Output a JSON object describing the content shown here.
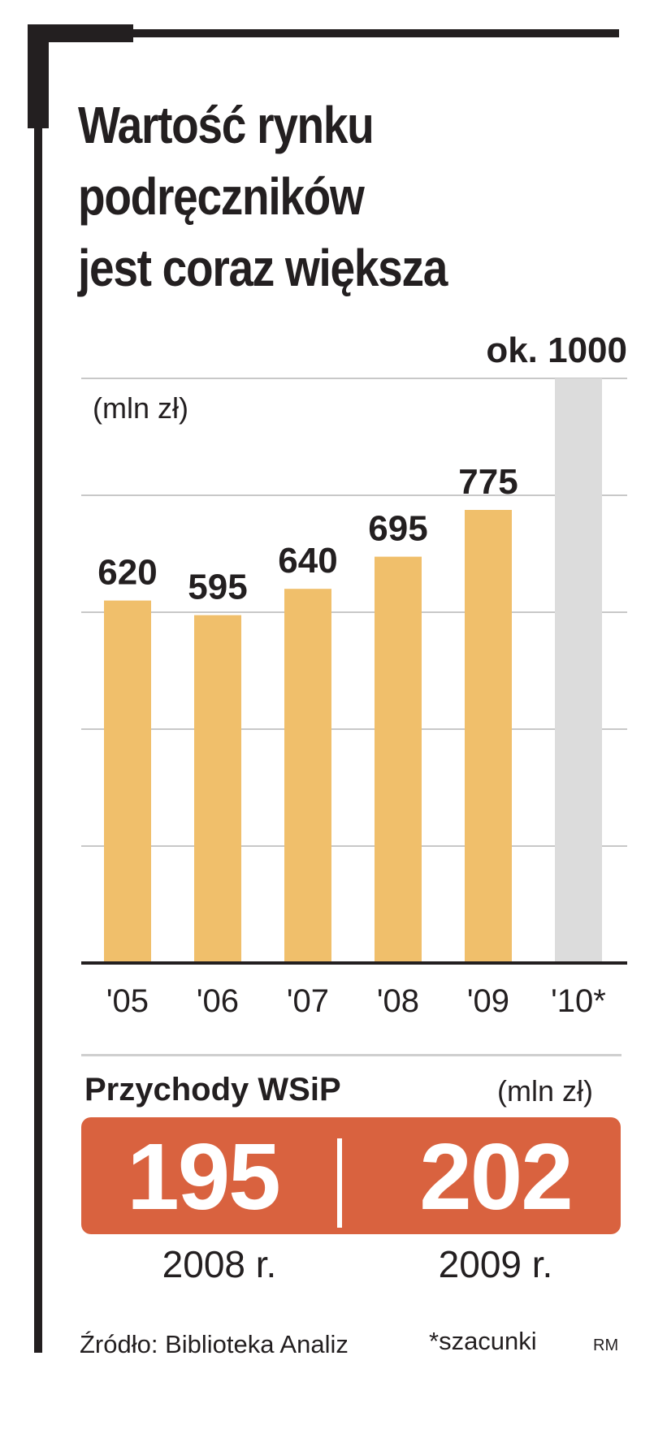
{
  "title_lines": [
    "Wartość rynku",
    "podręczników",
    "jest coraz większa"
  ],
  "chart_data": {
    "type": "bar",
    "unit": "(mln zł)",
    "categories": [
      "'05",
      "'06",
      "'07",
      "'08",
      "'09",
      "'10*"
    ],
    "values": [
      620,
      595,
      640,
      695,
      775,
      1000
    ],
    "value_labels": [
      "620",
      "595",
      "640",
      "695",
      "775",
      "ok. 1000"
    ],
    "estimated": [
      false,
      false,
      false,
      false,
      false,
      true
    ],
    "ylim": [
      0,
      1000
    ],
    "grid": true,
    "colors": {
      "actual": "#f0bf6b",
      "estimated": "#dcdcdc",
      "grid": "#c8c8c8",
      "axis": "#231f20"
    }
  },
  "revenue": {
    "title": "Przychody WSiP",
    "unit": "(mln zł)",
    "color": "#d9623f",
    "items": [
      {
        "value": "195",
        "year": "2008 r."
      },
      {
        "value": "202",
        "year": "2009 r."
      }
    ]
  },
  "footer": {
    "source": "Źródło: Biblioteka Analiz",
    "note": "*szacunki",
    "author": "RM"
  }
}
